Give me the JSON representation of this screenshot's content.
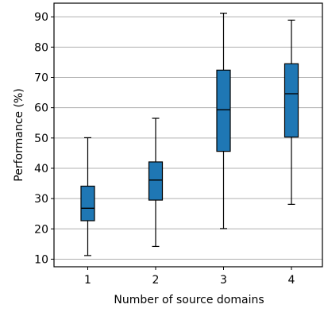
{
  "chart_data": {
    "type": "box",
    "xlabel": "Number of source domains",
    "ylabel": "Performance (%)",
    "ylim": [
      7.5,
      94.5
    ],
    "yticks": [
      10,
      20,
      30,
      40,
      50,
      60,
      70,
      80,
      90
    ],
    "grid": "horizontal",
    "box_color": "#1f77b4",
    "categories": [
      "1",
      "2",
      "3",
      "4"
    ],
    "boxes": [
      {
        "category": "1",
        "whisker_low": 11.2,
        "q1": 22.7,
        "median": 26.8,
        "q3": 34.1,
        "whisker_high": 50.1
      },
      {
        "category": "2",
        "whisker_low": 14.2,
        "q1": 29.5,
        "median": 36.1,
        "q3": 42.1,
        "whisker_high": 56.5
      },
      {
        "category": "3",
        "whisker_low": 20.1,
        "q1": 45.6,
        "median": 59.3,
        "q3": 72.4,
        "whisker_high": 91.2
      },
      {
        "category": "4",
        "whisker_low": 28.1,
        "q1": 50.3,
        "median": 64.6,
        "q3": 74.5,
        "whisker_high": 88.9
      }
    ]
  }
}
